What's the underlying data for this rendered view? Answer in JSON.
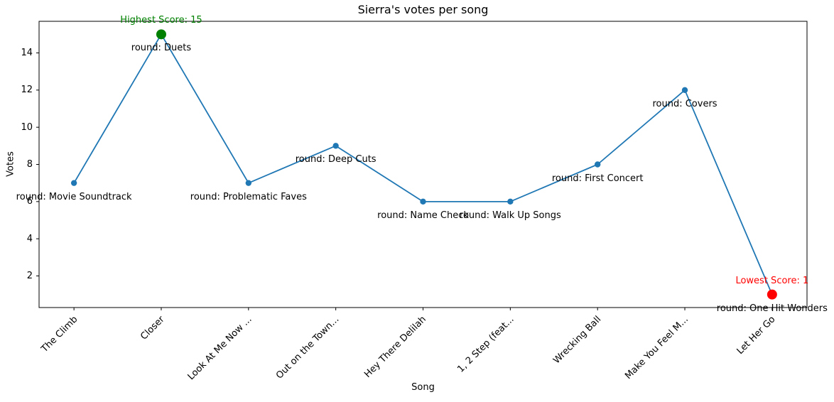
{
  "chart_data": {
    "type": "line",
    "title": "Sierra's votes per song",
    "xlabel": "Song",
    "ylabel": "Votes",
    "categories": [
      "The Climb",
      "Closer",
      "Look At Me Now ...",
      "Out on the Town...",
      "Hey There Delilah",
      "1, 2 Step (feat...",
      "Wrecking Ball",
      "Make You Feel M...",
      "Let Her Go"
    ],
    "values": [
      7,
      15,
      7,
      9,
      6,
      6,
      8,
      12,
      1
    ],
    "point_labels": [
      "round: Movie Soundtrack",
      "round: Duets",
      "round: Problematic Faves",
      "round: Deep Cuts",
      "round: Name Check",
      "round: Walk Up Songs",
      "round: First Concert",
      "round: Covers",
      "round: One Hit Wonders"
    ],
    "yticks": [
      2,
      4,
      6,
      8,
      10,
      12,
      14
    ],
    "xlim": [
      -0.4,
      8.4
    ],
    "ylim": [
      0.3,
      15.7
    ],
    "grid": false,
    "legend": null,
    "line_color": "#1f77b4",
    "marker_color": "#1f77b4",
    "highlight_annotations": [
      {
        "index": 1,
        "text": "Highest Score: 15",
        "color": "#008000",
        "name": "highest-score"
      },
      {
        "index": 8,
        "text": "Lowest Score: 1",
        "color": "#ff0000",
        "name": "lowest-score"
      }
    ]
  }
}
